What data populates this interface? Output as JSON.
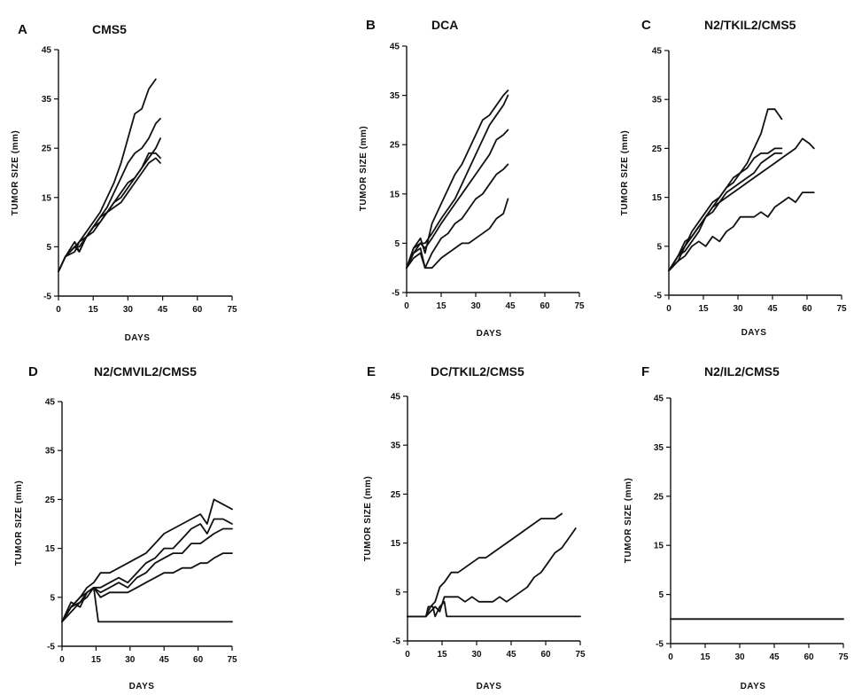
{
  "chart_data": [
    {
      "type": "line",
      "panel_letter": "A",
      "title": "CMS5",
      "xlabel": "DAYS",
      "ylabel": "TUMOR  SIZE  (mm)",
      "xlim": [
        0,
        75
      ],
      "ylim": [
        -5,
        45
      ],
      "xticks": [
        "0",
        "15",
        "30",
        "45",
        "60",
        "75"
      ],
      "yticks": [
        "-5",
        "5",
        "15",
        "25",
        "35",
        "45"
      ],
      "grid": false,
      "series": [
        {
          "x": [
            0,
            3,
            7,
            9,
            12,
            15,
            18,
            21,
            24,
            27,
            30,
            33,
            36,
            39,
            42
          ],
          "y": [
            0,
            3,
            5,
            6,
            8,
            10,
            12,
            15,
            18,
            22,
            27,
            32,
            33,
            37,
            39
          ]
        },
        {
          "x": [
            0,
            3,
            7,
            9,
            12,
            15,
            18,
            21,
            24,
            27,
            30,
            33,
            36,
            39,
            42,
            44
          ],
          "y": [
            0,
            3,
            5,
            4,
            7,
            9,
            11,
            13,
            16,
            19,
            22,
            24,
            25,
            27,
            30,
            31
          ]
        },
        {
          "x": [
            0,
            3,
            7,
            9,
            12,
            15,
            18,
            21,
            24,
            27,
            30,
            33,
            36,
            39,
            42,
            44
          ],
          "y": [
            0,
            3,
            6,
            4,
            7,
            9,
            10,
            12,
            14,
            16,
            18,
            19,
            21,
            23,
            25,
            27
          ]
        },
        {
          "x": [
            0,
            3,
            7,
            9,
            12,
            15,
            18,
            21,
            24,
            27,
            30,
            33,
            36,
            39,
            42,
            44
          ],
          "y": [
            0,
            3,
            5,
            5,
            7,
            9,
            11,
            12,
            14,
            15,
            17,
            19,
            21,
            24,
            24,
            23
          ]
        },
        {
          "x": [
            0,
            3,
            7,
            9,
            12,
            15,
            18,
            21,
            24,
            27,
            30,
            33,
            36,
            39,
            42,
            44
          ],
          "y": [
            0,
            3,
            4,
            6,
            7,
            8,
            10,
            12,
            13,
            14,
            16,
            18,
            20,
            22,
            23,
            22
          ]
        }
      ]
    },
    {
      "type": "line",
      "panel_letter": "B",
      "title": "DCA",
      "xlabel": "DAYS",
      "ylabel": "TUMOR  SIZE  (mm)",
      "xlim": [
        0,
        75
      ],
      "ylim": [
        -5,
        45
      ],
      "xticks": [
        "0",
        "15",
        "30",
        "45",
        "60",
        "75"
      ],
      "yticks": [
        "-5",
        "5",
        "15",
        "25",
        "35",
        "45"
      ],
      "grid": false,
      "series": [
        {
          "x": [
            0,
            3,
            6,
            8,
            11,
            15,
            18,
            21,
            24,
            27,
            30,
            33,
            36,
            39,
            42,
            44
          ],
          "y": [
            0,
            4,
            6,
            3,
            9,
            13,
            16,
            19,
            21,
            24,
            27,
            30,
            31,
            33,
            35,
            36
          ]
        },
        {
          "x": [
            0,
            3,
            6,
            8,
            11,
            15,
            18,
            21,
            24,
            27,
            30,
            33,
            36,
            39,
            42,
            44
          ],
          "y": [
            0,
            4,
            5,
            5,
            7,
            10,
            12,
            14,
            17,
            20,
            23,
            26,
            29,
            31,
            33,
            35
          ]
        },
        {
          "x": [
            0,
            3,
            6,
            8,
            11,
            15,
            18,
            21,
            24,
            27,
            30,
            33,
            36,
            39,
            42,
            44
          ],
          "y": [
            0,
            3,
            5,
            4,
            6,
            9,
            11,
            13,
            15,
            17,
            19,
            21,
            23,
            26,
            27,
            28
          ]
        },
        {
          "x": [
            0,
            3,
            6,
            8,
            11,
            15,
            18,
            21,
            24,
            27,
            30,
            33,
            36,
            39,
            42,
            44
          ],
          "y": [
            0,
            3,
            4,
            0,
            3,
            6,
            7,
            9,
            10,
            12,
            14,
            15,
            17,
            19,
            20,
            21
          ]
        },
        {
          "x": [
            0,
            3,
            6,
            8,
            11,
            15,
            18,
            21,
            24,
            27,
            30,
            33,
            36,
            39,
            42,
            44
          ],
          "y": [
            0,
            2,
            3,
            0,
            0,
            2,
            3,
            4,
            5,
            5,
            6,
            7,
            8,
            10,
            11,
            14
          ]
        }
      ]
    },
    {
      "type": "line",
      "panel_letter": "C",
      "title": "N2/TKIL2/CMS5",
      "xlabel": "DAYS",
      "ylabel": "TUMOR  SIZE  (mm)",
      "xlim": [
        0,
        75
      ],
      "ylim": [
        -5,
        45
      ],
      "xticks": [
        "0",
        "15",
        "30",
        "45",
        "60",
        "75"
      ],
      "yticks": [
        "-5",
        "5",
        "15",
        "25",
        "35",
        "45"
      ],
      "grid": false,
      "series": [
        {
          "x": [
            0,
            4,
            7,
            10,
            13,
            16,
            19,
            22,
            25,
            28,
            31,
            34,
            37,
            40,
            43,
            46,
            49
          ],
          "y": [
            0,
            3,
            6,
            7,
            9,
            11,
            13,
            15,
            17,
            19,
            20,
            22,
            25,
            28,
            33,
            33,
            31
          ]
        },
        {
          "x": [
            0,
            4,
            7,
            10,
            13,
            16,
            19,
            22,
            25,
            28,
            31,
            34,
            37,
            40,
            43,
            46,
            49
          ],
          "y": [
            0,
            3,
            5,
            8,
            10,
            12,
            14,
            15,
            17,
            18,
            20,
            21,
            23,
            24,
            24,
            25,
            25
          ]
        },
        {
          "x": [
            0,
            4,
            7,
            10,
            13,
            16,
            19,
            22,
            25,
            28,
            31,
            34,
            37,
            40,
            43,
            46,
            49
          ],
          "y": [
            0,
            2,
            5,
            7,
            9,
            11,
            13,
            14,
            16,
            17,
            18,
            19,
            20,
            22,
            23,
            24,
            24
          ]
        },
        {
          "x": [
            0,
            4,
            7,
            10,
            13,
            16,
            19,
            22,
            25,
            28,
            31,
            34,
            37,
            40,
            43,
            46,
            49,
            52,
            55,
            58,
            61,
            63
          ],
          "y": [
            0,
            3,
            4,
            6,
            8,
            11,
            12,
            14,
            15,
            16,
            17,
            18,
            19,
            20,
            21,
            22,
            23,
            24,
            25,
            27,
            26,
            25
          ]
        },
        {
          "x": [
            0,
            4,
            7,
            10,
            13,
            16,
            19,
            22,
            25,
            28,
            31,
            34,
            37,
            40,
            43,
            46,
            49,
            52,
            55,
            58,
            61,
            63
          ],
          "y": [
            0,
            2,
            3,
            5,
            6,
            5,
            7,
            6,
            8,
            9,
            11,
            11,
            11,
            12,
            11,
            13,
            14,
            15,
            14,
            16,
            16,
            16
          ]
        }
      ]
    },
    {
      "type": "line",
      "panel_letter": "D",
      "title": "N2/CMVIL2/CMS5",
      "xlabel": "DAYS",
      "ylabel": "TUMOR  SIZE  (mm)",
      "xlim": [
        0,
        75
      ],
      "ylim": [
        -5,
        45
      ],
      "xticks": [
        "0",
        "15",
        "30",
        "45",
        "60",
        "75"
      ],
      "yticks": [
        "-5",
        "5",
        "15",
        "25",
        "35",
        "45"
      ],
      "grid": false,
      "series": [
        {
          "x": [
            0,
            4,
            8,
            11,
            14,
            17,
            21,
            25,
            29,
            33,
            37,
            41,
            45,
            49,
            53,
            57,
            61,
            64,
            67,
            71,
            75
          ],
          "y": [
            0,
            3,
            5,
            7,
            8,
            10,
            10,
            11,
            12,
            13,
            14,
            16,
            18,
            19,
            20,
            21,
            22,
            20,
            25,
            24,
            23
          ]
        },
        {
          "x": [
            0,
            4,
            8,
            11,
            14,
            17,
            21,
            25,
            29,
            33,
            37,
            41,
            45,
            49,
            53,
            57,
            61,
            64,
            67,
            71,
            75
          ],
          "y": [
            0,
            4,
            3,
            6,
            7,
            7,
            8,
            9,
            8,
            10,
            12,
            13,
            15,
            15,
            17,
            19,
            20,
            18,
            21,
            21,
            20
          ]
        },
        {
          "x": [
            0,
            4,
            8,
            11,
            14,
            17,
            21,
            25,
            29,
            33,
            37,
            41,
            45,
            49,
            53,
            57,
            61,
            64,
            67,
            71,
            75
          ],
          "y": [
            0,
            3,
            4,
            5,
            7,
            6,
            7,
            8,
            7,
            9,
            10,
            12,
            13,
            14,
            14,
            16,
            16,
            17,
            18,
            19,
            19
          ]
        },
        {
          "x": [
            0,
            4,
            8,
            11,
            14,
            17,
            21,
            25,
            29,
            33,
            37,
            41,
            45,
            49,
            53,
            57,
            61,
            64,
            67,
            71,
            75
          ],
          "y": [
            0,
            2,
            4,
            6,
            7,
            5,
            6,
            6,
            6,
            7,
            8,
            9,
            10,
            10,
            11,
            11,
            12,
            12,
            13,
            14,
            14
          ]
        },
        {
          "x": [
            0,
            4,
            8,
            11,
            14,
            16,
            20,
            75
          ],
          "y": [
            0,
            3,
            5,
            6,
            7,
            0,
            0,
            0
          ]
        }
      ]
    },
    {
      "type": "line",
      "panel_letter": "E",
      "title": "DC/TKIL2/CMS5",
      "xlabel": "DAYS",
      "ylabel": "TUMOR  SIZE  (mm)",
      "xlim": [
        0,
        75
      ],
      "ylim": [
        -5,
        45
      ],
      "xticks": [
        "0",
        "15",
        "30",
        "45",
        "60",
        "75"
      ],
      "yticks": [
        "-5",
        "5",
        "15",
        "25",
        "35",
        "45"
      ],
      "grid": false,
      "series": [
        {
          "x": [
            0,
            8,
            10,
            12,
            14,
            16,
            19,
            22,
            25,
            28,
            31,
            34,
            37,
            40,
            43,
            46,
            49,
            52,
            55,
            58,
            61,
            64,
            67
          ],
          "y": [
            0,
            0,
            2,
            3,
            6,
            7,
            9,
            9,
            10,
            11,
            12,
            12,
            13,
            14,
            15,
            16,
            17,
            18,
            19,
            20,
            20,
            20,
            21
          ]
        },
        {
          "x": [
            0,
            8,
            10,
            12,
            14,
            16,
            19,
            22,
            25,
            28,
            31,
            34,
            37,
            40,
            43,
            46,
            49,
            52,
            55,
            58,
            61,
            64,
            67,
            70,
            73
          ],
          "y": [
            0,
            0,
            1,
            2,
            1,
            4,
            4,
            4,
            3,
            4,
            3,
            3,
            3,
            4,
            3,
            4,
            5,
            6,
            8,
            9,
            11,
            13,
            14,
            16,
            18
          ]
        },
        {
          "x": [
            0,
            8,
            9,
            11,
            12,
            14,
            16,
            17,
            75
          ],
          "y": [
            0,
            0,
            2,
            2,
            0,
            2,
            3,
            0,
            0
          ]
        }
      ]
    },
    {
      "type": "line",
      "panel_letter": "F",
      "title": "N2/IL2/CMS5",
      "xlabel": "DAYS",
      "ylabel": "TUMOR  SIZE  (mm)",
      "xlim": [
        0,
        75
      ],
      "ylim": [
        -5,
        45
      ],
      "xticks": [
        "0",
        "15",
        "30",
        "45",
        "60",
        "75"
      ],
      "yticks": [
        "-5",
        "5",
        "15",
        "25",
        "35",
        "45"
      ],
      "grid": false,
      "series": [
        {
          "x": [
            0,
            75
          ],
          "y": [
            0,
            0
          ]
        }
      ]
    }
  ]
}
